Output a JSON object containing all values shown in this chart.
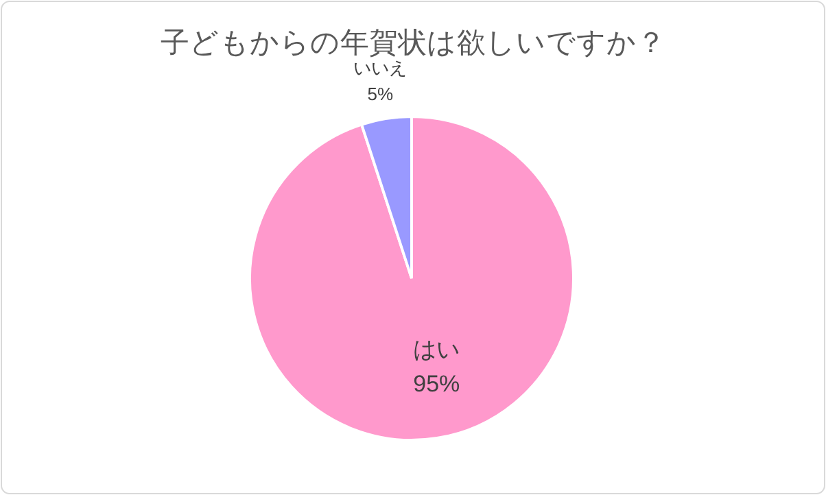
{
  "chart_data": {
    "type": "pie",
    "title": "子どもからの年賀状は欲しいですか？",
    "categories": [
      "はい",
      "いいえ"
    ],
    "values": [
      95,
      5
    ],
    "colors": [
      "#ff99cc",
      "#9999ff"
    ],
    "value_labels": [
      "95%",
      "5%"
    ]
  }
}
